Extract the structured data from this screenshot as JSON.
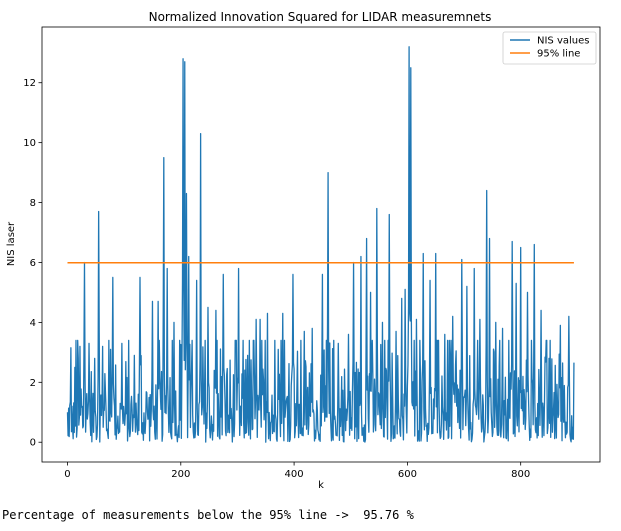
{
  "chart_data": {
    "type": "line",
    "title": "Normalized Innovation Squared for LIDAR measuremnets",
    "xlabel": "k",
    "ylabel": "NIS laser",
    "xlim": [
      -45,
      940
    ],
    "ylim": [
      -0.66,
      13.86
    ],
    "xticks": [
      0,
      200,
      400,
      600,
      800
    ],
    "yticks": [
      0,
      2,
      4,
      6,
      8,
      10,
      12
    ],
    "grid": false,
    "legend_position": "top-right",
    "series": [
      {
        "name": "NIS values",
        "color": "#1f77b4",
        "n_points": 895,
        "peaks": [
          [
            0,
            1.0
          ],
          [
            8,
            1.2
          ],
          [
            22,
            3.2
          ],
          [
            30,
            6.0
          ],
          [
            38,
            3.3
          ],
          [
            48,
            2.8
          ],
          [
            55,
            7.7
          ],
          [
            62,
            3.2
          ],
          [
            76,
            3.1
          ],
          [
            80,
            5.5
          ],
          [
            96,
            3.3
          ],
          [
            118,
            2.9
          ],
          [
            128,
            5.5
          ],
          [
            150,
            4.7
          ],
          [
            160,
            4.7
          ],
          [
            170,
            9.5
          ],
          [
            176,
            5.8
          ],
          [
            188,
            4.0
          ],
          [
            204,
            12.8
          ],
          [
            207,
            12.7
          ],
          [
            210,
            8.3
          ],
          [
            214,
            6.2
          ],
          [
            228,
            5.4
          ],
          [
            235,
            10.3
          ],
          [
            248,
            4.5
          ],
          [
            262,
            4.4
          ],
          [
            275,
            5.6
          ],
          [
            302,
            5.8
          ],
          [
            318,
            2.9
          ],
          [
            333,
            4.1
          ],
          [
            340,
            4.1
          ],
          [
            353,
            4.3
          ],
          [
            372,
            3.1
          ],
          [
            380,
            4.3
          ],
          [
            398,
            5.6
          ],
          [
            418,
            3.7
          ],
          [
            432,
            3.8
          ],
          [
            450,
            5.6
          ],
          [
            460,
            9.0
          ],
          [
            478,
            3.3
          ],
          [
            496,
            3.6
          ],
          [
            505,
            6.0
          ],
          [
            518,
            6.2
          ],
          [
            528,
            6.8
          ],
          [
            535,
            5.0
          ],
          [
            546,
            7.8
          ],
          [
            556,
            4.0
          ],
          [
            568,
            7.6
          ],
          [
            580,
            3.7
          ],
          [
            590,
            4.8
          ],
          [
            596,
            5.1
          ],
          [
            603,
            13.2
          ],
          [
            606,
            12.5
          ],
          [
            616,
            4.1
          ],
          [
            628,
            6.3
          ],
          [
            640,
            5.4
          ],
          [
            650,
            6.3
          ],
          [
            666,
            3.6
          ],
          [
            680,
            4.2
          ],
          [
            696,
            6.1
          ],
          [
            705,
            5.2
          ],
          [
            718,
            5.8
          ],
          [
            728,
            4.1
          ],
          [
            740,
            8.4
          ],
          [
            745,
            6.8
          ],
          [
            756,
            4.0
          ],
          [
            768,
            3.8
          ],
          [
            785,
            6.7
          ],
          [
            792,
            5.3
          ],
          [
            800,
            6.5
          ],
          [
            812,
            5.0
          ],
          [
            824,
            6.6
          ],
          [
            836,
            4.4
          ],
          [
            850,
            2.8
          ],
          [
            870,
            3.9
          ],
          [
            885,
            4.2
          ],
          [
            892,
            0.5
          ]
        ]
      },
      {
        "name": "95% line",
        "color": "#ff7f0e",
        "x": [
          0,
          894
        ],
        "y": [
          5.991,
          5.991
        ]
      }
    ]
  },
  "output": {
    "text": "Percentage of measurements below the 95% line ->  95.76 %"
  }
}
